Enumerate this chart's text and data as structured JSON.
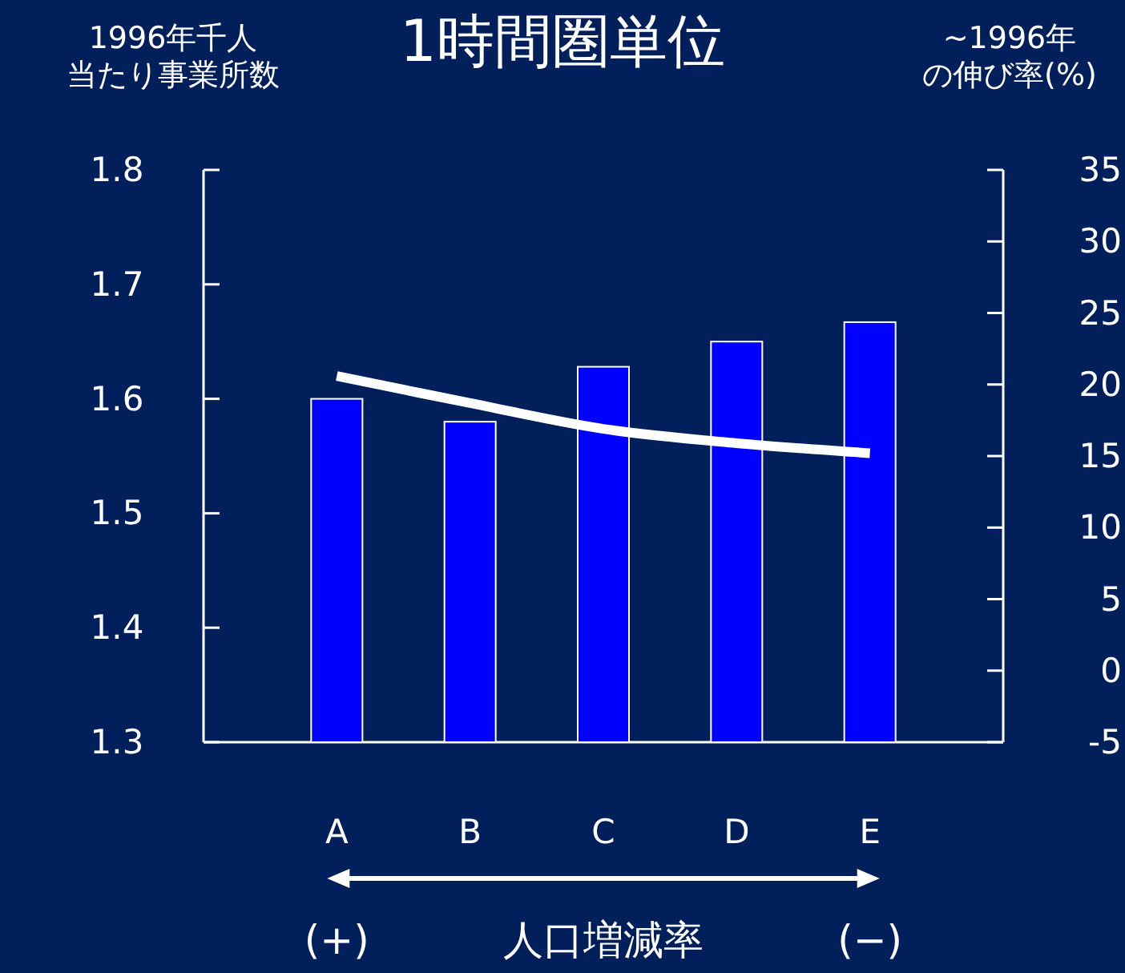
{
  "chart_data": {
    "type": "bar",
    "title": "1時間圏単位",
    "ylabel": "1996年千人当たり事業所数",
    "y2label": "~1996年の伸び率(%)",
    "xlabel": "人口増減率",
    "annotations": [
      "(+)",
      "(−)"
    ],
    "categories": [
      "A",
      "B",
      "C",
      "D",
      "E"
    ],
    "series": [
      {
        "color": "#0000ff",
        "values": [
          1.6,
          1.58,
          1.628,
          1.65,
          1.667
        ]
      },
      {
        "type": "line",
        "axis": "y2",
        "color": "#ffffff",
        "values": [
          20.6,
          18.7,
          16.9,
          15.9,
          15.2
        ]
      }
    ],
    "ylim": [
      1.3,
      1.8
    ],
    "yticks": [
      1.3,
      1.4,
      1.5,
      1.6,
      1.7,
      1.8
    ],
    "y2lim": [
      -5,
      35
    ],
    "y2ticks": [
      -5,
      0,
      5,
      10,
      15,
      20,
      25,
      30,
      35
    ]
  }
}
